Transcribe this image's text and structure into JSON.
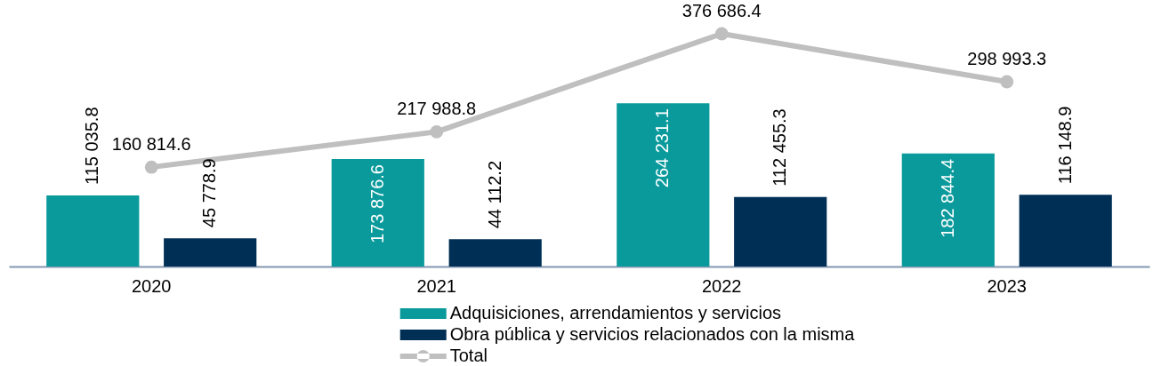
{
  "chart_data": {
    "type": "bar",
    "categories": [
      "2020",
      "2021",
      "2022",
      "2023"
    ],
    "series": [
      {
        "name": "Adquisiciones, arrendamientos y servicios",
        "color": "#0a9a9c",
        "values": [
          115035.8,
          173876.6,
          264231.1,
          182844.4
        ]
      },
      {
        "name": "Obra pública y servicios relacionados con la misma",
        "color": "#002f56",
        "values": [
          45778.9,
          44112.2,
          112455.3,
          116148.9
        ]
      },
      {
        "name": "Total",
        "type": "line",
        "color": "#bfbfbf",
        "values": [
          160814.6,
          217988.8,
          376686.4,
          298993.3
        ]
      }
    ],
    "data_labels": true,
    "legend": "bottom",
    "marker": "circle",
    "tick_labels": "x"
  }
}
